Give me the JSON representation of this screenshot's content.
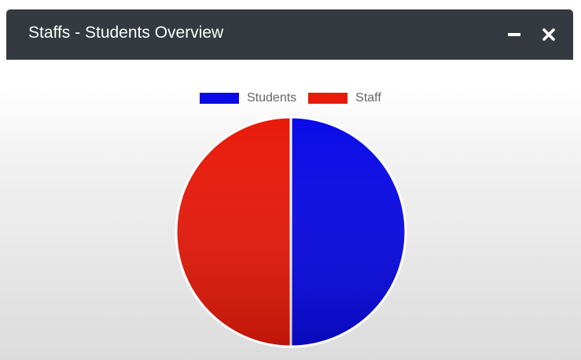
{
  "card": {
    "title": "Staffs - Students Overview",
    "tools": {
      "minimize_icon": "minus-icon",
      "close_icon": "times-icon"
    }
  },
  "colors": {
    "header_bg": "#343a40",
    "students": "#0a0ae6",
    "staff": "#e81a0a",
    "slice_border": "#ffffff"
  },
  "chart_data": {
    "type": "pie",
    "title": "",
    "legend_position": "top",
    "categories": [
      "Students",
      "Staff"
    ],
    "values": [
      50,
      50
    ],
    "colors": [
      "#0a0ae6",
      "#e81a0a"
    ]
  }
}
